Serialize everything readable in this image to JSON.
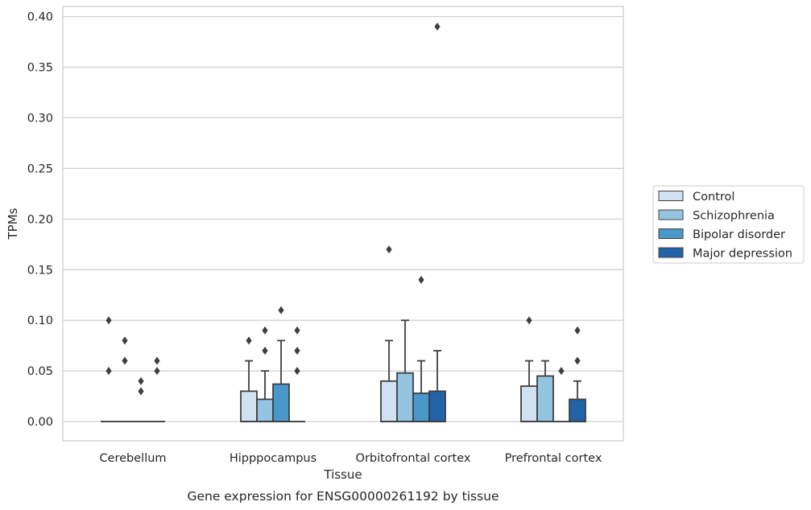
{
  "chart_data": {
    "type": "box",
    "title": "Gene expression for ENSG00000261192 by tissue",
    "xlabel": "Tissue",
    "ylabel": "TPMs",
    "ylim": [
      -0.019,
      0.41
    ],
    "yticks": [
      0.0,
      0.05,
      0.1,
      0.15,
      0.2,
      0.25,
      0.3,
      0.35,
      0.4
    ],
    "ytick_labels": [
      "0.00",
      "0.05",
      "0.10",
      "0.15",
      "0.20",
      "0.25",
      "0.30",
      "0.35",
      "0.40"
    ],
    "grid": "y",
    "legend_position": "right",
    "categories": [
      "Cerebellum",
      "Hipppocampus",
      "Orbitofrontal cortex",
      "Prefrontal cortex"
    ],
    "series": [
      {
        "name": "Control",
        "color": "#d0e1f2",
        "boxes": [
          {
            "q1": 0,
            "median": 0,
            "q3": 0,
            "whisker_low": 0,
            "whisker_high": 0,
            "outliers": [
              0.05,
              0.1
            ]
          },
          {
            "q1": 0,
            "median": 0,
            "q3": 0.03,
            "whisker_low": 0,
            "whisker_high": 0.06,
            "outliers": [
              0.08
            ]
          },
          {
            "q1": 0,
            "median": 0,
            "q3": 0.04,
            "whisker_low": 0,
            "whisker_high": 0.08,
            "outliers": [
              0.17
            ]
          },
          {
            "q1": 0,
            "median": 0,
            "q3": 0.035,
            "whisker_low": 0,
            "whisker_high": 0.06,
            "outliers": [
              0.1
            ]
          }
        ]
      },
      {
        "name": "Schizophrenia",
        "color": "#94c4df",
        "boxes": [
          {
            "q1": 0,
            "median": 0,
            "q3": 0,
            "whisker_low": 0,
            "whisker_high": 0,
            "outliers": [
              0.06,
              0.08
            ]
          },
          {
            "q1": 0,
            "median": 0,
            "q3": 0.022,
            "whisker_low": 0,
            "whisker_high": 0.05,
            "outliers": [
              0.07,
              0.09
            ]
          },
          {
            "q1": 0,
            "median": 0,
            "q3": 0.048,
            "whisker_low": 0,
            "whisker_high": 0.1,
            "outliers": []
          },
          {
            "q1": 0,
            "median": 0,
            "q3": 0.045,
            "whisker_low": 0,
            "whisker_high": 0.06,
            "outliers": []
          }
        ]
      },
      {
        "name": "Bipolar disorder",
        "color": "#4a98c9",
        "boxes": [
          {
            "q1": 0,
            "median": 0,
            "q3": 0,
            "whisker_low": 0,
            "whisker_high": 0,
            "outliers": [
              0.03,
              0.04
            ]
          },
          {
            "q1": 0,
            "median": 0,
            "q3": 0.037,
            "whisker_low": 0,
            "whisker_high": 0.08,
            "outliers": [
              0.11
            ]
          },
          {
            "q1": 0,
            "median": 0,
            "q3": 0.028,
            "whisker_low": 0,
            "whisker_high": 0.06,
            "outliers": [
              0.14
            ]
          },
          {
            "q1": 0,
            "median": 0,
            "q3": 0,
            "whisker_low": 0,
            "whisker_high": 0,
            "outliers": [
              0.05
            ]
          }
        ]
      },
      {
        "name": "Major depression",
        "color": "#2363a8",
        "boxes": [
          {
            "q1": 0,
            "median": 0,
            "q3": 0,
            "whisker_low": 0,
            "whisker_high": 0,
            "outliers": [
              0.05,
              0.06
            ]
          },
          {
            "q1": 0,
            "median": 0,
            "q3": 0,
            "whisker_low": 0,
            "whisker_high": 0,
            "outliers": [
              0.05,
              0.07,
              0.09
            ]
          },
          {
            "q1": 0,
            "median": 0,
            "q3": 0.03,
            "whisker_low": 0,
            "whisker_high": 0.07,
            "outliers": [
              0.39
            ]
          },
          {
            "q1": 0,
            "median": 0,
            "q3": 0.022,
            "whisker_low": 0,
            "whisker_high": 0.04,
            "outliers": [
              0.06,
              0.09
            ]
          }
        ]
      }
    ]
  }
}
